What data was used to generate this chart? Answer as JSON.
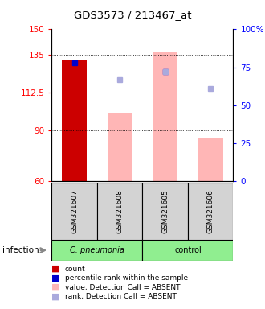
{
  "title": "GDS3573 / 213467_at",
  "samples": [
    "GSM321607",
    "GSM321608",
    "GSM321605",
    "GSM321606"
  ],
  "ylim_left": [
    60,
    150
  ],
  "ylim_right": [
    0,
    100
  ],
  "yticks_left": [
    60,
    90,
    112.5,
    135,
    150
  ],
  "ytick_labels_left": [
    "60",
    "90",
    "112.5",
    "135",
    "150"
  ],
  "yticks_right": [
    0,
    25,
    50,
    75,
    100
  ],
  "ytick_labels_right": [
    "0",
    "25",
    "50",
    "75",
    "100%"
  ],
  "bar_values": [
    132.0,
    100.0,
    137.0,
    85.0
  ],
  "bar_colors": [
    "#CC0000",
    "#FFB6B6",
    "#FFB6B6",
    "#FFB6B6"
  ],
  "rank_markers_left": [
    130.0,
    null,
    125.0,
    null
  ],
  "rank_marker_color": "#0000CC",
  "absent_rank_markers_left": [
    null,
    120.0,
    125.0,
    115.0
  ],
  "absent_rank_color": "#AAAADD",
  "legend_items": [
    {
      "label": "count",
      "color": "#CC0000"
    },
    {
      "label": "percentile rank within the sample",
      "color": "#0000CC"
    },
    {
      "label": "value, Detection Call = ABSENT",
      "color": "#FFB6B6"
    },
    {
      "label": "rank, Detection Call = ABSENT",
      "color": "#AAAADD"
    }
  ],
  "group1_label": "C. pneumonia",
  "group2_label": "control",
  "infection_label": "infection",
  "sample_box_color": "#D3D3D3",
  "group_box_color": "#90EE90"
}
